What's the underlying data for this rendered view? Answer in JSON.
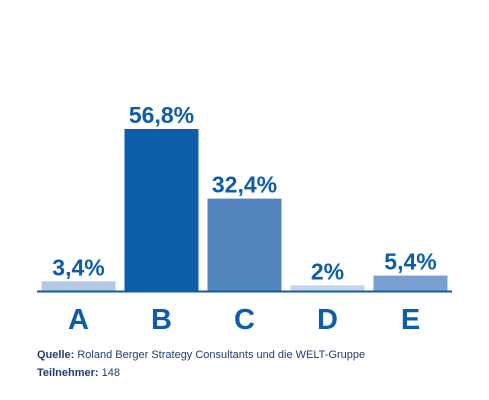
{
  "chart_data": {
    "type": "bar",
    "categories": [
      "A",
      "B",
      "C",
      "D",
      "E"
    ],
    "values": [
      3.4,
      56.8,
      32.4,
      2,
      5.4
    ],
    "value_labels": [
      "3,4%",
      "56,8%",
      "32,4%",
      "2%",
      "5,4%"
    ],
    "bar_colors": [
      "#b5c9e3",
      "#0d5da8",
      "#5384bd",
      "#c5d6ea",
      "#7aa0cf"
    ],
    "label_color": "#0d5da8",
    "category_color": "#0d5da8",
    "axis_color": "#0d5da8",
    "ylim": [
      0,
      56.8
    ],
    "grid": false,
    "legend": "none",
    "title": "",
    "xlabel": "",
    "ylabel": ""
  },
  "footer": {
    "source_label": "Quelle:",
    "source_text": "Roland Berger Strategy Consultants und die WELT-Gruppe",
    "participants_label": "Teilnehmer:",
    "participants_text": "148"
  }
}
